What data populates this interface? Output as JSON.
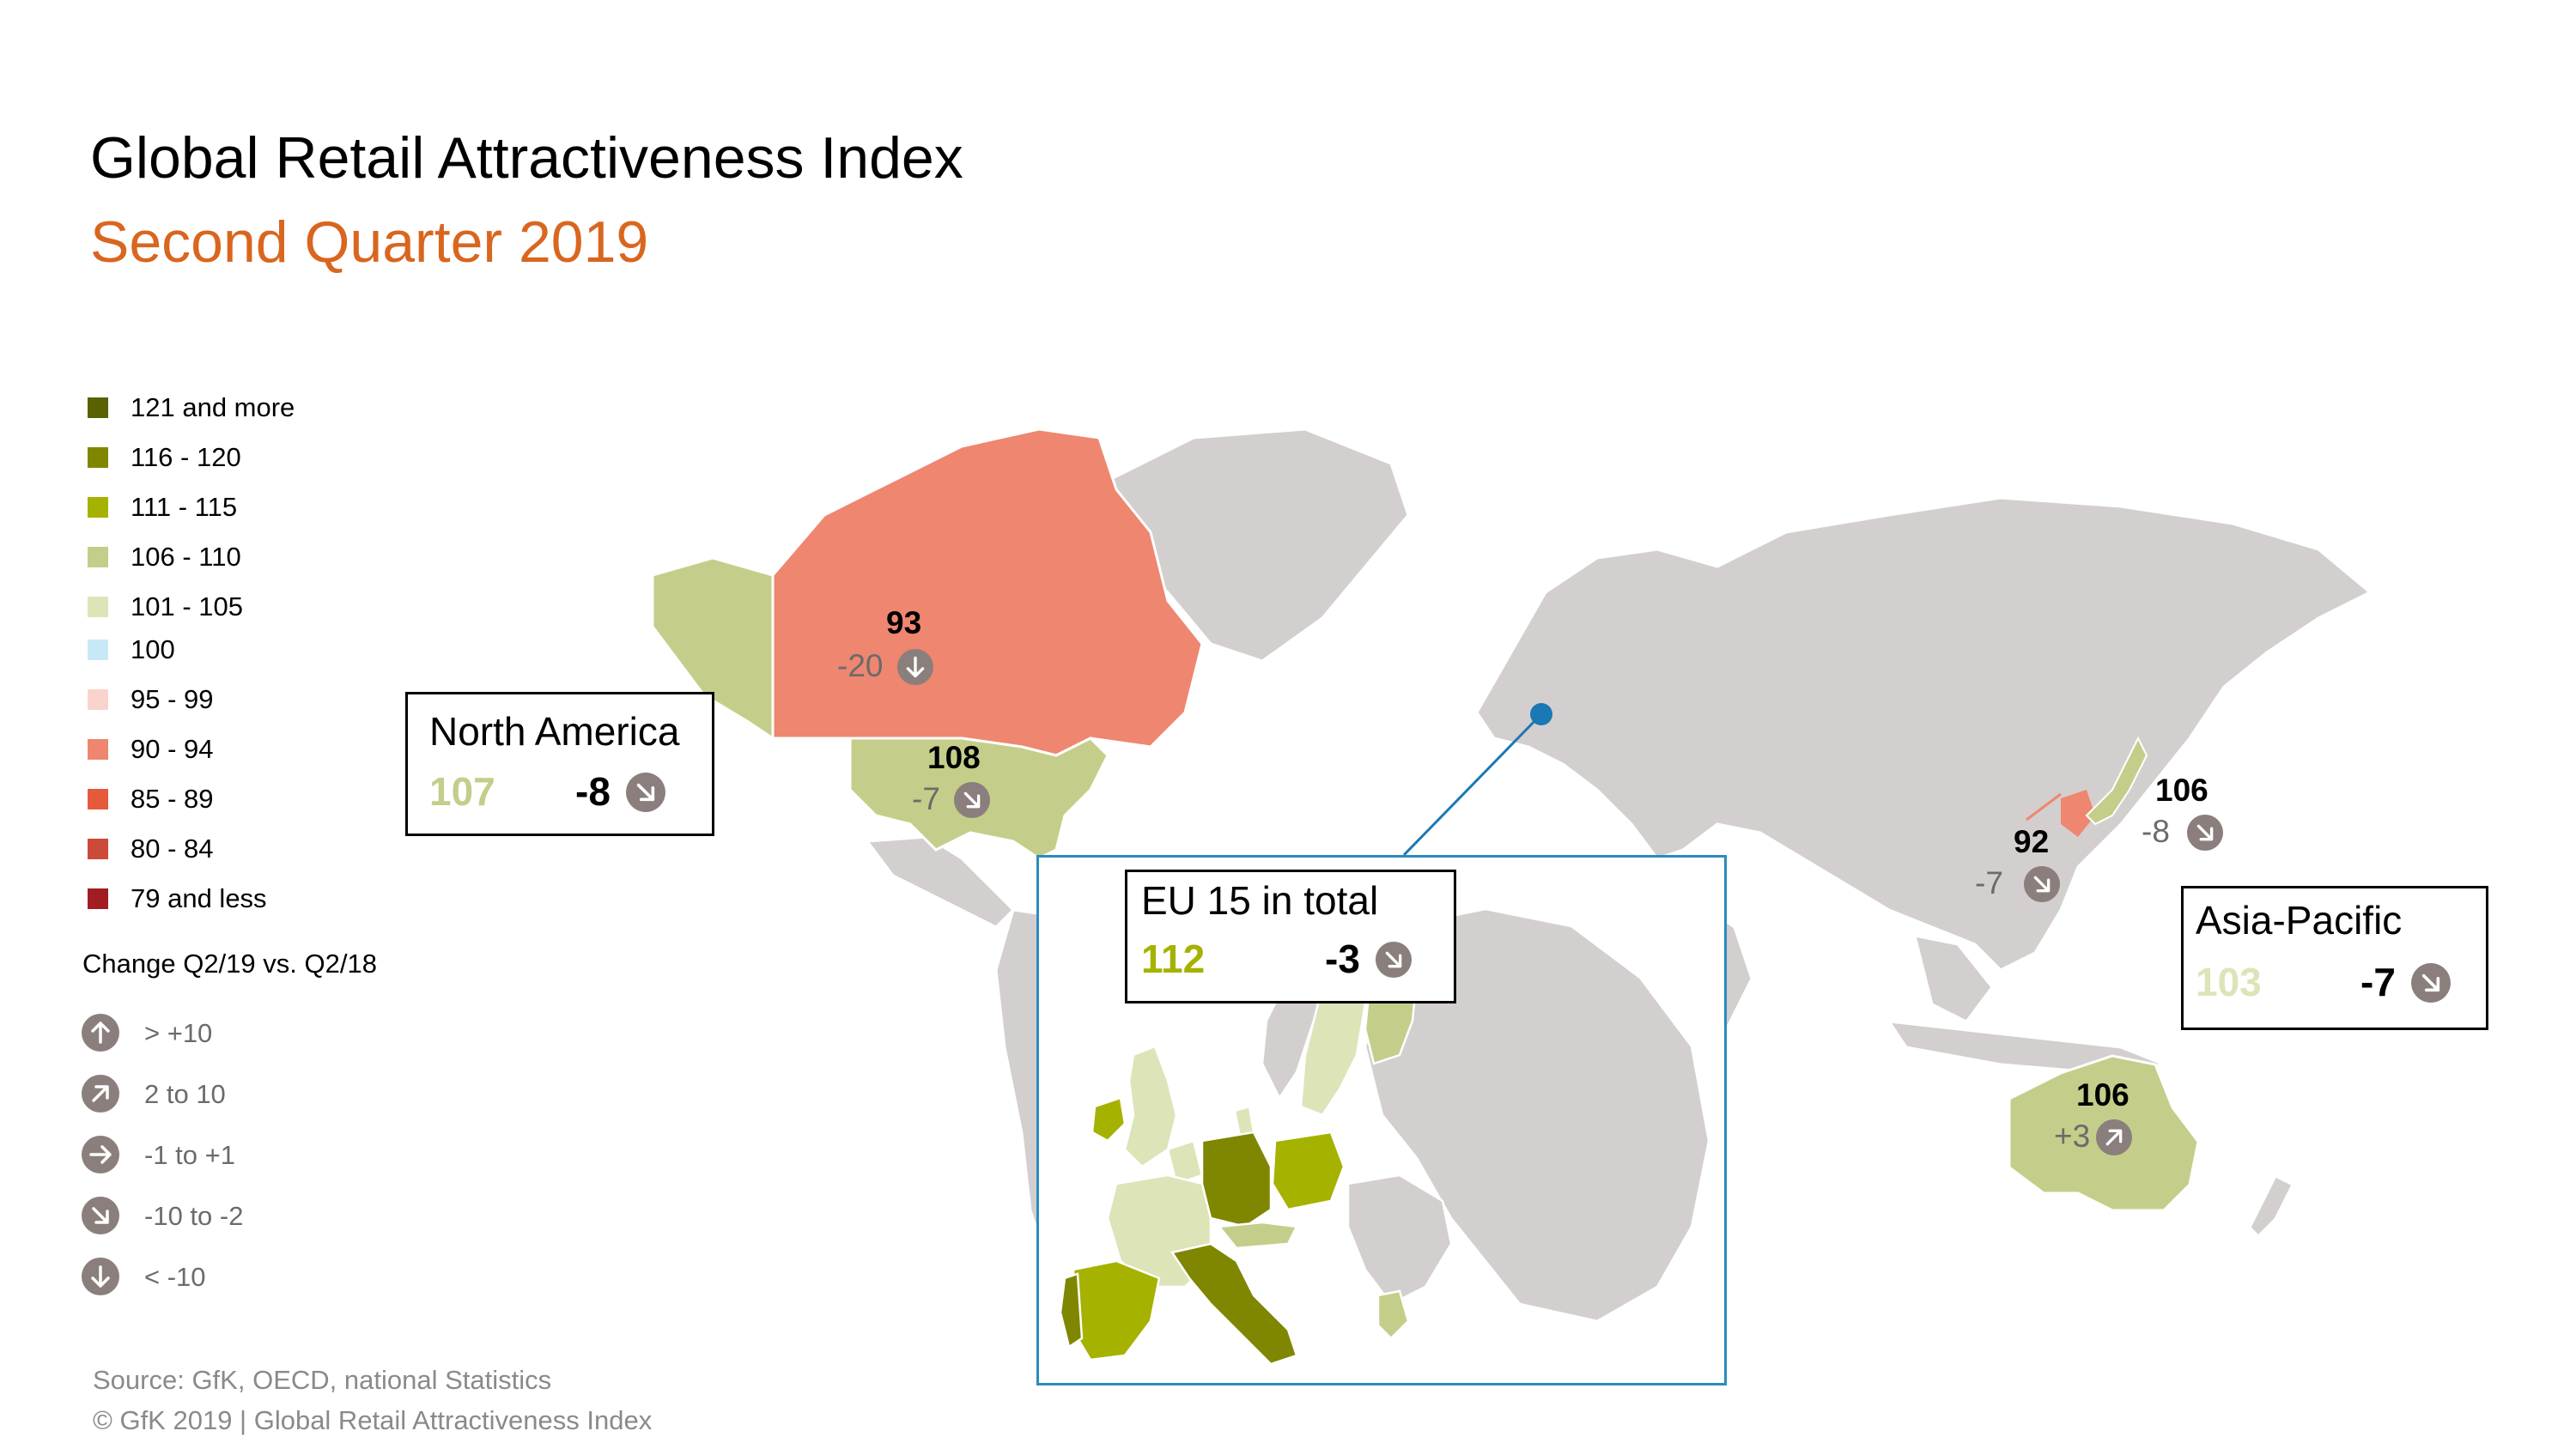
{
  "header": {
    "title": "Global Retail Attractiveness Index",
    "subtitle": "Second Quarter 2019"
  },
  "legend": {
    "items": [
      {
        "label": "121 and more",
        "color": "#5a6100"
      },
      {
        "label": "116 - 120",
        "color": "#7f8700"
      },
      {
        "label": "111 - 115",
        "color": "#a6b200"
      },
      {
        "label": "106 - 110",
        "color": "#c4ce8a"
      },
      {
        "label": "101 - 105",
        "color": "#dde4b8"
      },
      {
        "label": "100",
        "color": "#c8e8f8"
      },
      {
        "label": "95 - 99",
        "color": "#f8d4cc"
      },
      {
        "label": "90 - 94",
        "color": "#ef8670"
      },
      {
        "label": "85 - 89",
        "color": "#e65a3c"
      },
      {
        "label": "80 - 84",
        "color": "#cc4a3a"
      },
      {
        "label": "79 and less",
        "color": "#a11d22"
      }
    ],
    "change_title": "Change Q2/19 vs. Q2/18",
    "change_items": [
      {
        "label": "> +10",
        "icon": "arrow-up-icon"
      },
      {
        "label": "2 to 10",
        "icon": "arrow-up-right-icon"
      },
      {
        "label": "-1 to +1",
        "icon": "arrow-right-icon"
      },
      {
        "label": "-10 to -2",
        "icon": "arrow-down-right-icon"
      },
      {
        "label": "< -10",
        "icon": "arrow-down-icon"
      }
    ]
  },
  "countries": {
    "canada": {
      "value": "93",
      "change": "-20",
      "icon": "arrow-down-icon"
    },
    "usa": {
      "value": "108",
      "change": "-7",
      "icon": "arrow-down-right-icon"
    },
    "china": {
      "value": "92",
      "change": "-7",
      "icon": "arrow-down-right-icon"
    },
    "japan": {
      "value": "106",
      "change": "-8",
      "icon": "arrow-down-right-icon"
    },
    "australia": {
      "value": "106",
      "change": "+3",
      "icon": "arrow-up-right-icon"
    }
  },
  "regions": {
    "north_america": {
      "name": "North America",
      "value": "107",
      "change": "-8",
      "value_color": "#c4ce8a"
    },
    "eu15": {
      "name": "EU 15 in total",
      "value": "112",
      "change": "-3",
      "value_color": "#a6b200"
    },
    "asia_pacific": {
      "name": "Asia-Pacific",
      "value": "103",
      "change": "-7",
      "value_color": "#dde4b8"
    }
  },
  "footer": {
    "source": "Source: GfK, OECD, national Statistics",
    "copyright": "© GfK 2019 | Global Retail Attractiveness Index"
  },
  "colors": {
    "land_neutral": "#d3cfcf",
    "accent_orange": "#d9661f",
    "frame_blue": "#2b8bbf",
    "icon_gray": "#8a7f7c"
  }
}
